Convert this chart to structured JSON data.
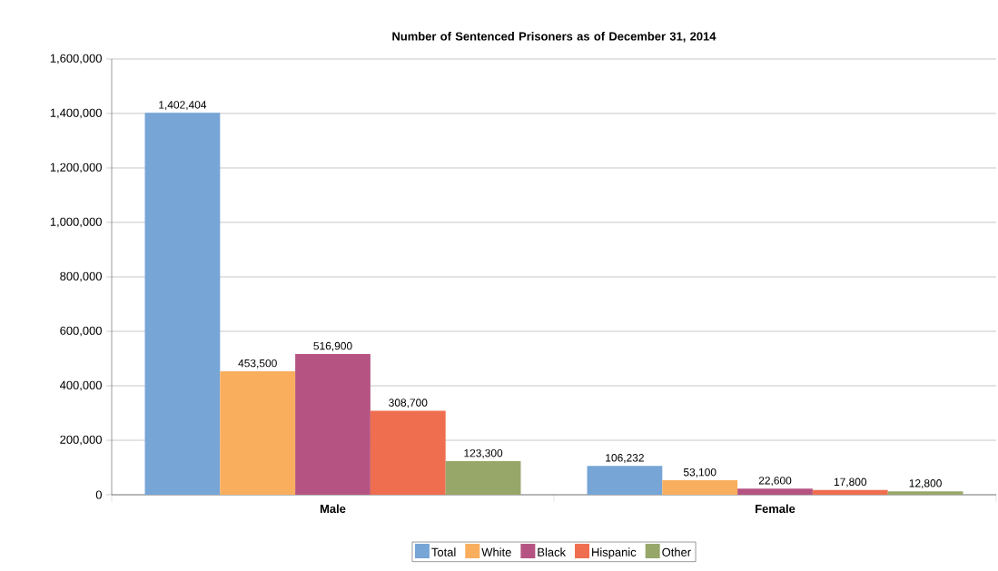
{
  "chart_data": {
    "type": "bar",
    "title": "Number of Sentenced Prisoners as of December 31, 2014",
    "categories": [
      "Male",
      "Female"
    ],
    "series": [
      {
        "name": "Total",
        "color": "#76a5d6",
        "values": [
          1402404,
          106232
        ],
        "value_labels": [
          "1,402,404",
          "106,232"
        ]
      },
      {
        "name": "White",
        "color": "#f9ae5e",
        "values": [
          453500,
          53100
        ],
        "value_labels": [
          "453,500",
          "53,100"
        ]
      },
      {
        "name": "Black",
        "color": "#b55482",
        "values": [
          516900,
          22600
        ],
        "value_labels": [
          "516,900",
          "22,600"
        ]
      },
      {
        "name": "Hispanic",
        "color": "#ef6e4f",
        "values": [
          308700,
          17800
        ],
        "value_labels": [
          "308,700",
          "17,800"
        ]
      },
      {
        "name": "Other",
        "color": "#97a76a",
        "values": [
          123300,
          12800
        ],
        "value_labels": [
          "123,300",
          "12,800"
        ]
      }
    ],
    "ylim": [
      0,
      1600000
    ],
    "yticks": [
      0,
      {
        "value": 200000,
        "label": "200,000"
      },
      {
        "value": 400000,
        "label": "400,000"
      },
      {
        "value": 600000,
        "label": "600,000"
      },
      {
        "value": 800000,
        "label": "800,000"
      },
      {
        "value": 1000000,
        "label": "1,000,000"
      },
      {
        "value": 1200000,
        "label": "1,200,000"
      },
      {
        "value": 1400000,
        "label": "1,400,000"
      },
      {
        "value": 1600000,
        "label": "1,600,000"
      }
    ],
    "grid": "y",
    "legend": "bottom"
  }
}
